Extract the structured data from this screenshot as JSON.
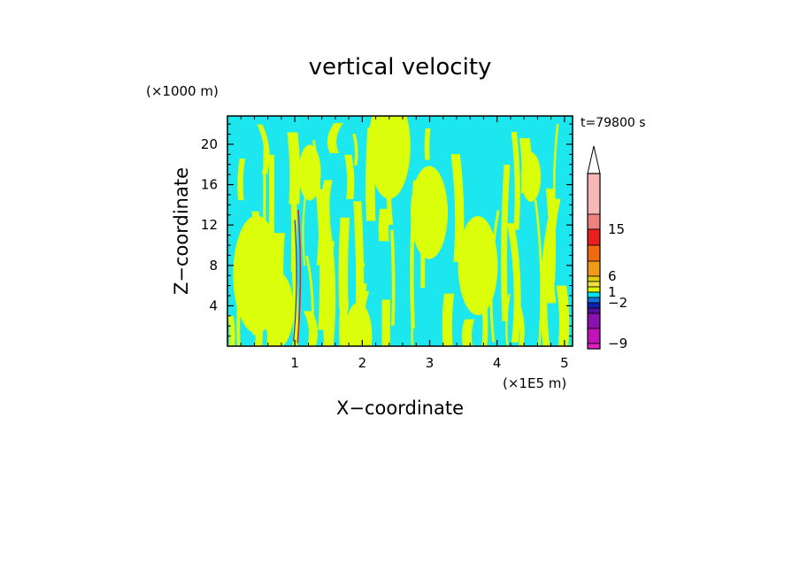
{
  "chart_data": {
    "type": "heatmap",
    "title": "vertical velocity",
    "xlabel": "X−coordinate",
    "ylabel": "Z−coordinate",
    "x_unit": "(×1E5 m)",
    "y_unit": "(×1000 m)",
    "time_label": "t=79800 s",
    "xlim": [
      0,
      5.12
    ],
    "ylim": [
      0,
      22.8
    ],
    "x_ticks": [
      1,
      2,
      3,
      4,
      5
    ],
    "x_tick_labels": [
      "1",
      "2",
      "3",
      "4",
      "5"
    ],
    "y_ticks": [
      4,
      8,
      12,
      16,
      20
    ],
    "y_tick_labels": [
      "4",
      "8",
      "12",
      "16",
      "20"
    ],
    "colorbar": {
      "tick_labels": [
        "15",
        "6",
        "1",
        "−2",
        "−9"
      ],
      "levels_top_to_bottom": [
        {
          "color": "#f4b8b8"
        },
        {
          "color": "#ee8080"
        },
        {
          "color": "#e82020"
        },
        {
          "color": "#f06a10"
        },
        {
          "color": "#f29a18"
        },
        {
          "color": "#e0cf10"
        },
        {
          "color": "#f2e040"
        },
        {
          "color": "#dff500"
        },
        {
          "color": "#00e5ee"
        },
        {
          "color": "#1070e0"
        },
        {
          "color": "#1020b0"
        },
        {
          "color": "#5010a0"
        },
        {
          "color": "#8a10b0"
        },
        {
          "color": "#c012b8"
        },
        {
          "color": "#e020c0"
        }
      ]
    },
    "field_colors": {
      "background": "#1ce6ee",
      "updraft": "#dbff0a",
      "strong_up": "#e82020",
      "strong_down": "#3030c0"
    }
  }
}
